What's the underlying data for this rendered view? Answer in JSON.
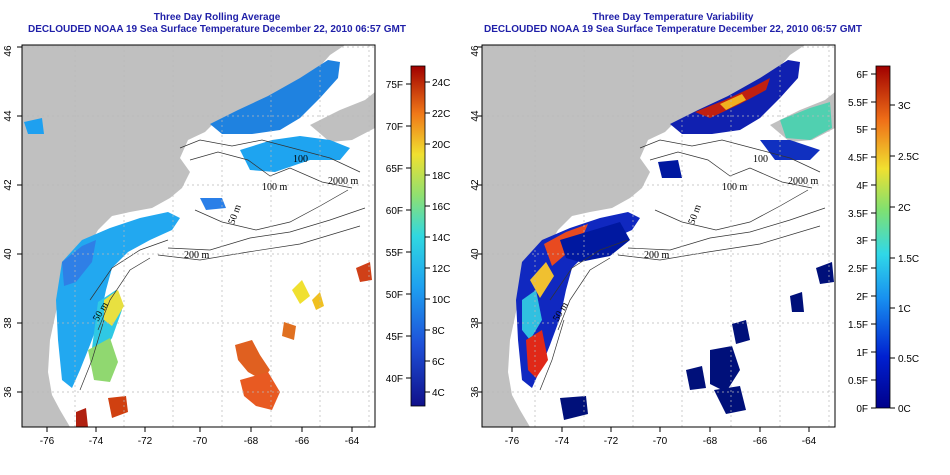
{
  "left_panel": {
    "title_line1": "Three Day Rolling Average",
    "title_line2": "DECLOUDED NOAA 19 Sea Surface Temperature December 22, 2010 06:57 GMT",
    "lon_ticks": [
      "-76",
      "-74",
      "-72",
      "-70",
      "-68",
      "-66",
      "-64"
    ],
    "lat_ticks": [
      "36",
      "38",
      "40",
      "42",
      "44",
      "46"
    ],
    "contours": [
      "200 m",
      "100",
      "100 m",
      "2000 m",
      "50 m",
      "50 m"
    ],
    "colorbar": {
      "fahrenheit": [
        "75F",
        "70F",
        "65F",
        "60F",
        "55F",
        "50F",
        "45F",
        "40F"
      ],
      "celsius": [
        "24C",
        "22C",
        "20C",
        "18C",
        "16C",
        "14C",
        "12C",
        "10C",
        "8C",
        "6C",
        "4C"
      ]
    }
  },
  "right_panel": {
    "title_line1": "Three Day Temperature Variability",
    "title_line2": "DECLOUDED NOAA 19 Sea Surface Temperature December 22, 2010 06:57 GMT",
    "lon_ticks": [
      "-76",
      "-74",
      "-72",
      "-70",
      "-68",
      "-66",
      "-64"
    ],
    "lat_ticks": [
      "36",
      "38",
      "40",
      "42",
      "44",
      "46"
    ],
    "contours": [
      "200 m",
      "100",
      "100 m",
      "2000 m",
      "50 m",
      "50 m"
    ],
    "colorbar": {
      "fahrenheit": [
        "6F",
        "5.5F",
        "5F",
        "4.5F",
        "4F",
        "3.5F",
        "3F",
        "2.5F",
        "2F",
        "1.5F",
        "1F",
        "0.5F",
        "0F"
      ],
      "celsius": [
        "3C",
        "2.5C",
        "2C",
        "1.5C",
        "1C",
        "0.5C",
        "0C"
      ]
    }
  },
  "colors": {
    "title": "#1f1fa8",
    "land": "#c0c0c0",
    "ocean_nodata": "#ffffff",
    "grid": "#b0b0b0"
  }
}
